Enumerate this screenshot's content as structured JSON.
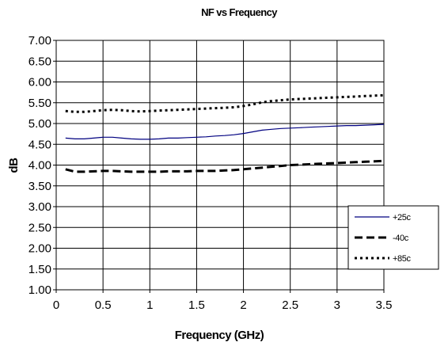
{
  "chart_data": {
    "type": "line",
    "title": "NF vs Frequency",
    "xlabel": "Frequency (GHz)",
    "ylabel": "dB",
    "xlim": [
      0,
      3.5
    ],
    "ylim": [
      1.0,
      7.0
    ],
    "x_ticks": [
      "0",
      "0.5",
      "1",
      "1.5",
      "2",
      "2.5",
      "3",
      "3.5"
    ],
    "y_ticks": [
      "1.00",
      "1.50",
      "2.00",
      "2.50",
      "3.00",
      "3.50",
      "4.00",
      "4.50",
      "5.00",
      "5.50",
      "6.00",
      "6.50",
      "7.00"
    ],
    "grid": true,
    "legend_position": "bottom-right",
    "x": [
      0.1,
      0.2,
      0.3,
      0.4,
      0.5,
      0.6,
      0.7,
      0.8,
      0.9,
      1.0,
      1.1,
      1.2,
      1.3,
      1.4,
      1.5,
      1.6,
      1.7,
      1.8,
      1.9,
      2.0,
      2.1,
      2.2,
      2.3,
      2.4,
      2.5,
      2.6,
      2.7,
      2.8,
      2.9,
      3.0,
      3.1,
      3.2,
      3.3,
      3.4,
      3.5
    ],
    "series": [
      {
        "name": "+25c",
        "color": "#000080",
        "style": "solid",
        "values": [
          4.65,
          4.63,
          4.63,
          4.65,
          4.67,
          4.67,
          4.65,
          4.63,
          4.62,
          4.62,
          4.63,
          4.65,
          4.65,
          4.66,
          4.67,
          4.68,
          4.7,
          4.71,
          4.73,
          4.76,
          4.8,
          4.84,
          4.86,
          4.88,
          4.89,
          4.9,
          4.91,
          4.92,
          4.93,
          4.94,
          4.95,
          4.95,
          4.96,
          4.97,
          4.98
        ]
      },
      {
        "name": "-40c",
        "color": "#000000",
        "style": "dashed",
        "values": [
          3.9,
          3.84,
          3.84,
          3.85,
          3.86,
          3.86,
          3.85,
          3.84,
          3.84,
          3.84,
          3.84,
          3.85,
          3.85,
          3.85,
          3.86,
          3.86,
          3.86,
          3.87,
          3.88,
          3.9,
          3.92,
          3.94,
          3.96,
          3.98,
          4.0,
          4.01,
          4.02,
          4.03,
          4.04,
          4.05,
          4.06,
          4.07,
          4.08,
          4.09,
          4.1
        ]
      },
      {
        "name": "+85c",
        "color": "#000000",
        "style": "dotted",
        "values": [
          5.3,
          5.28,
          5.28,
          5.3,
          5.32,
          5.33,
          5.32,
          5.3,
          5.29,
          5.3,
          5.31,
          5.32,
          5.33,
          5.34,
          5.35,
          5.36,
          5.37,
          5.38,
          5.39,
          5.42,
          5.46,
          5.51,
          5.54,
          5.56,
          5.58,
          5.59,
          5.6,
          5.61,
          5.62,
          5.63,
          5.64,
          5.65,
          5.66,
          5.67,
          5.68
        ]
      }
    ]
  }
}
